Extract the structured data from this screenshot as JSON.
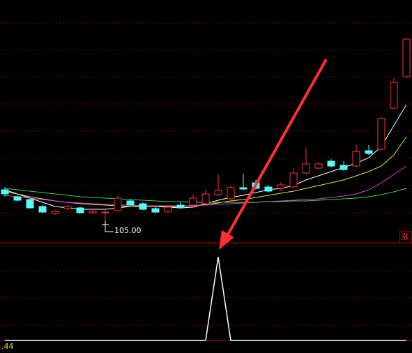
{
  "chart_data": [
    {
      "type": "candlestick",
      "open": [
        110.0,
        109.0,
        108.6,
        107.6,
        106.6,
        107.3,
        107.4,
        106.7,
        106.7,
        107.0,
        108.4,
        108.0,
        107.3,
        106.9,
        107.8,
        107.8,
        108.0,
        109.3,
        108.7,
        110.3,
        111.0,
        110.4,
        110.2,
        110.4,
        112.4,
        113.1,
        114.1,
        113.5,
        113.4,
        115.6,
        115.8,
        121.7,
        126.2
      ],
      "high": [
        110.4,
        109.2,
        108.8,
        107.8,
        107.1,
        107.8,
        107.6,
        107.1,
        107.2,
        109.1,
        108.7,
        108.2,
        107.5,
        107.7,
        108.2,
        109.3,
        110.0,
        112.3,
        110.6,
        112.3,
        111.4,
        110.7,
        111.1,
        113.2,
        116.0,
        114.0,
        114.4,
        114.1,
        116.4,
        116.4,
        120.4,
        126.0,
        131.8
      ],
      "low": [
        109.0,
        108.3,
        107.3,
        106.7,
        106.4,
        107.1,
        106.6,
        106.5,
        105.0,
        106.9,
        107.6,
        107.1,
        106.6,
        106.7,
        107.2,
        107.6,
        107.8,
        109.1,
        108.5,
        109.9,
        110.0,
        109.6,
        109.8,
        110.2,
        112.2,
        112.9,
        113.2,
        112.7,
        113.2,
        115.0,
        115.6,
        121.5,
        126.0
      ],
      "close": [
        109.4,
        108.5,
        107.4,
        106.8,
        106.9,
        107.6,
        106.7,
        106.9,
        106.8,
        108.8,
        107.8,
        107.2,
        106.8,
        107.5,
        107.4,
        108.8,
        109.4,
        109.9,
        110.3,
        110.1,
        110.2,
        109.8,
        110.7,
        112.4,
        113.7,
        113.7,
        113.4,
        112.9,
        115.5,
        115.2,
        120.2,
        125.4,
        131.6
      ],
      "up_color": "#ff3232",
      "down_color": "#54fcfc",
      "series": [
        {
          "color": "#ffffff",
          "values": [
            110.0,
            109.4,
            108.8,
            108.2,
            107.6,
            107.4,
            107.2,
            107.2,
            107.2,
            107.4,
            107.6,
            107.7,
            107.6,
            107.5,
            107.4,
            107.5,
            108.0,
            108.5,
            108.9,
            109.2,
            109.6,
            110.0,
            110.2,
            110.6,
            111.4,
            112.0,
            112.6,
            113.2,
            113.8,
            114.6,
            116.2,
            119.2,
            122.2
          ]
        },
        {
          "color": "#e8e040",
          "values": [
            109.7,
            109.4,
            109.0,
            108.7,
            108.4,
            108.2,
            108.0,
            107.9,
            107.8,
            107.7,
            107.6,
            107.6,
            107.6,
            107.6,
            107.6,
            107.7,
            107.9,
            108.1,
            108.4,
            108.6,
            108.9,
            109.2,
            109.5,
            109.8,
            110.2,
            110.6,
            111.0,
            111.4,
            112.0,
            112.6,
            113.4,
            115.0,
            117.6
          ]
        },
        {
          "color": "#e040e0",
          "values": [
            109.2,
            109.0,
            108.8,
            108.6,
            108.4,
            108.2,
            108.1,
            108.0,
            107.9,
            107.8,
            107.8,
            107.7,
            107.7,
            107.7,
            107.7,
            107.7,
            107.8,
            107.9,
            108.0,
            108.1,
            108.2,
            108.3,
            108.4,
            108.5,
            108.6,
            108.7,
            108.9,
            109.1,
            109.4,
            110.0,
            111.0,
            112.2,
            113.4
          ]
        },
        {
          "color": "#40d040",
          "values": [
            110.2,
            110.0,
            109.8,
            109.6,
            109.4,
            109.2,
            109.0,
            108.9,
            108.8,
            108.7,
            108.6,
            108.5,
            108.4,
            108.3,
            108.3,
            108.2,
            108.2,
            108.2,
            108.2,
            108.2,
            108.2,
            108.3,
            108.3,
            108.4,
            108.4,
            108.5,
            108.6,
            108.7,
            108.8,
            109.0,
            109.3,
            109.7,
            110.2
          ]
        }
      ],
      "ylim": [
        102.4,
        137.2
      ],
      "low_label": "105.00",
      "badge": "涨"
    },
    {
      "type": "line",
      "values": [
        0,
        0,
        0,
        0,
        0,
        0,
        0,
        0,
        0,
        0,
        0,
        0,
        0,
        0,
        0,
        0,
        0,
        1,
        0,
        0,
        0,
        0,
        0,
        0,
        0,
        0,
        0,
        0,
        0,
        0,
        0,
        0,
        0
      ],
      "color": "#ffffff",
      "ylim": [
        0,
        1.17
      ],
      "corner_label": ".44"
    }
  ]
}
